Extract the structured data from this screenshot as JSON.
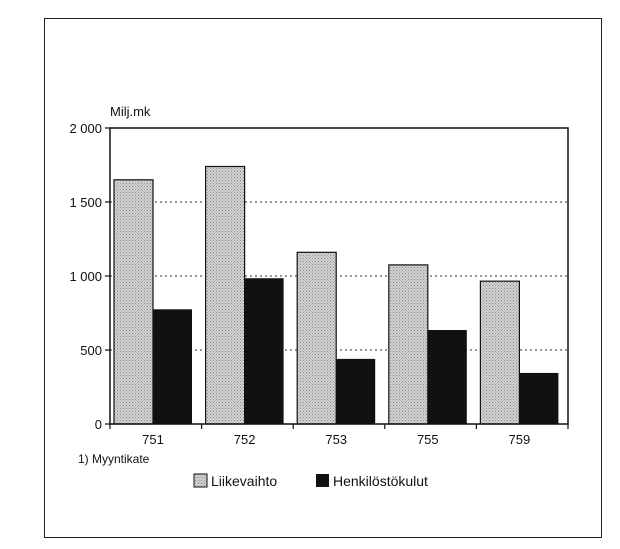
{
  "chart_data": {
    "type": "bar",
    "ylabel": "Milj.mk",
    "footnote": "1) Myyntikate",
    "categories": [
      "751",
      "752",
      "753",
      "755",
      "759"
    ],
    "series": [
      {
        "name": "Liikevaihto",
        "color": "#c8c8c8",
        "values": [
          1650,
          1740,
          1160,
          1075,
          965
        ]
      },
      {
        "name": "Henkilöstökulut",
        "color": "#111111",
        "values": [
          775,
          985,
          440,
          635,
          345
        ]
      }
    ],
    "ylim": [
      0,
      2000
    ],
    "yticks": [
      0,
      500,
      1000,
      1500,
      2000
    ],
    "ytick_labels": [
      "0",
      "500",
      "1 000",
      "1 500",
      "2 000"
    ],
    "grid": "dotted horizontal",
    "legend_position": "bottom"
  }
}
